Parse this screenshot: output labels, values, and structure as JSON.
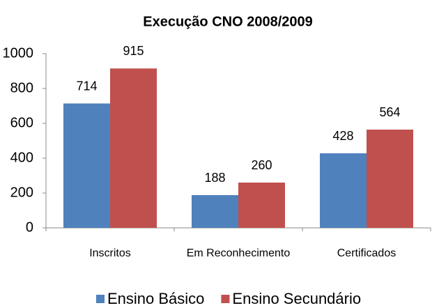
{
  "chart_data": {
    "type": "bar",
    "title": "Execução CNO 2008/2009",
    "categories": [
      "Inscritos",
      "Em Reconhecimento",
      "Certificados"
    ],
    "series": [
      {
        "name": "Ensino Básico",
        "color": "#4f81bd",
        "values": [
          714,
          188,
          428
        ]
      },
      {
        "name": "Ensino Secundário",
        "color": "#c0504d",
        "values": [
          915,
          260,
          564
        ]
      }
    ],
    "ylim": [
      0,
      1000
    ],
    "yticks": [
      0,
      200,
      400,
      600,
      800,
      1000
    ],
    "legend": "bottom"
  }
}
